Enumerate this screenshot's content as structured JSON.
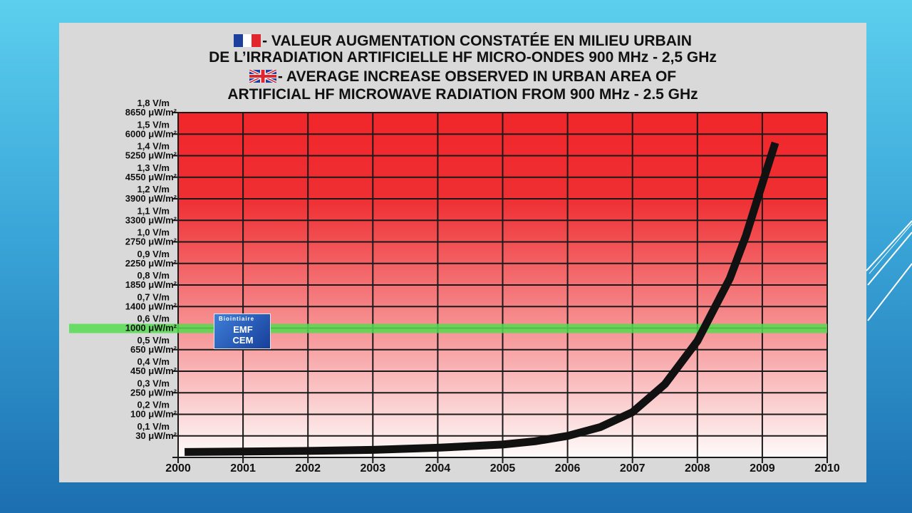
{
  "title": {
    "fr_line1": "- VALEUR AUGMENTATION CONSTATÉE EN MILIEU URBAIN",
    "fr_line2": "DE L’IRRADIATION ARTIFICIELLE HF MICRO-ONDES 900 MHz - 2,5 GHz",
    "en_line1": "- AVERAGE INCREASE OBSERVED IN URBAN AREA OF",
    "en_line2": "ARTIFICIAL HF MICROWAVE RADIATION FROM 900 MHz - 2.5 GHz"
  },
  "badge": {
    "arc_text": "Biointiaire",
    "line1": "EMF",
    "line2": "CEM"
  },
  "colors": {
    "plot_top": "#f0262a",
    "plot_bottom": "#fefbfb",
    "grid": "#1a1a1a",
    "curve": "#111111",
    "highlight_band": "#55dc50",
    "panel": "#d9d9d9"
  },
  "chart_data": {
    "type": "line",
    "x_categories": [
      "2000",
      "2001",
      "2002",
      "2003",
      "2004",
      "2005",
      "2006",
      "2007",
      "2008",
      "2009",
      "2010"
    ],
    "y_levels": [
      {
        "field": "0,1 V/m",
        "density": "30 μW/m²"
      },
      {
        "field": "0,2 V/m",
        "density": "100 μW/m²"
      },
      {
        "field": "0,3 V/m",
        "density": "250 μW/m²"
      },
      {
        "field": "0,4 V/m",
        "density": "450 μW/m²"
      },
      {
        "field": "0,5 V/m",
        "density": "650 μW/m²"
      },
      {
        "field": "0,6 V/m",
        "density": "1000 μW/m²"
      },
      {
        "field": "0,7 V/m",
        "density": "1400 μW/m²"
      },
      {
        "field": "0,8 V/m",
        "density": "1850 μW/m²"
      },
      {
        "field": "0,9 V/m",
        "density": "2250 μW/m²"
      },
      {
        "field": "1,0 V/m",
        "density": "2750 μW/m²"
      },
      {
        "field": "1,1 V/m",
        "density": "3300 μW/m²"
      },
      {
        "field": "1,2 V/m",
        "density": "3900 μW/m²"
      },
      {
        "field": "1,3 V/m",
        "density": "4550 μW/m²"
      },
      {
        "field": "1,4 V/m",
        "density": "5250 μW/m²"
      },
      {
        "field": "1,5 V/m",
        "density": "6000 μW/m²"
      },
      {
        "field": "1,8 V/m",
        "density": "8650 μW/m²"
      }
    ],
    "y_scale": {
      "min_level": 0,
      "max_level": 16,
      "unit": "V/m level index"
    },
    "highlight_level": 6,
    "series": [
      {
        "x": [
          2000.1,
          2001,
          2002,
          2003,
          2004,
          2005,
          2005.5,
          2006,
          2006.5,
          2007,
          2007.5,
          2008,
          2008.5,
          2008.75,
          2009,
          2009.2
        ],
        "y": [
          0.25,
          0.27,
          0.3,
          0.35,
          0.45,
          0.6,
          0.75,
          1.0,
          1.4,
          2.1,
          3.4,
          5.4,
          8.3,
          10.3,
          12.7,
          14.6
        ]
      }
    ],
    "grid": true
  }
}
